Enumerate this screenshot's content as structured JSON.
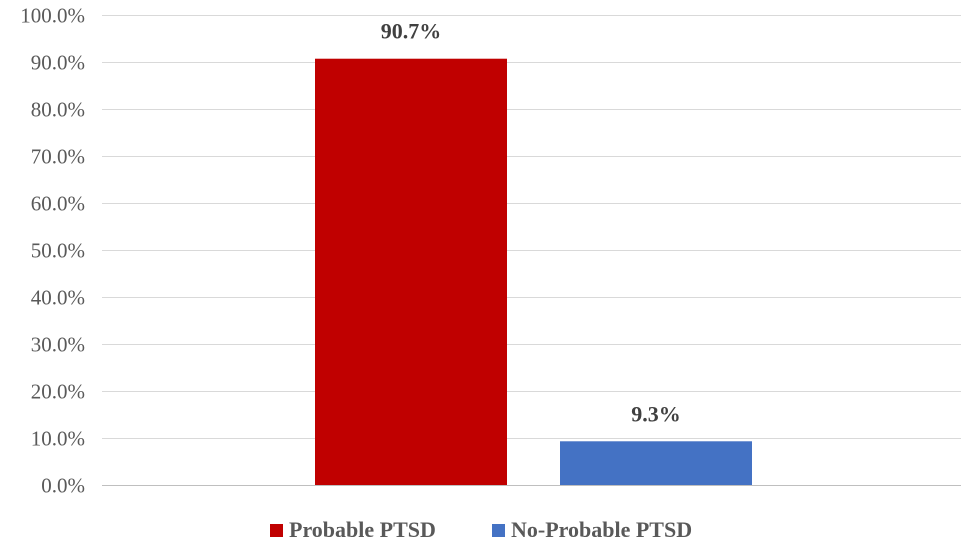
{
  "chart_data": {
    "type": "bar",
    "title": "",
    "xlabel": "",
    "ylabel": "",
    "ylim": [
      0,
      100
    ],
    "yticks": [
      0,
      10,
      20,
      30,
      40,
      50,
      60,
      70,
      80,
      90,
      100
    ],
    "ytick_labels": [
      "0.0%",
      "10.0%",
      "20.0%",
      "30.0%",
      "40.0%",
      "50.0%",
      "60.0%",
      "70.0%",
      "80.0%",
      "90.0%",
      "100.0%"
    ],
    "grid": true,
    "legend_position": "bottom",
    "categories": [
      "Probable PTSD",
      "No-Probable PTSD"
    ],
    "values": [
      90.7,
      9.3
    ],
    "data_labels": [
      "90.7%",
      "9.3%"
    ],
    "colors": [
      "#c00000",
      "#4472c4"
    ]
  }
}
